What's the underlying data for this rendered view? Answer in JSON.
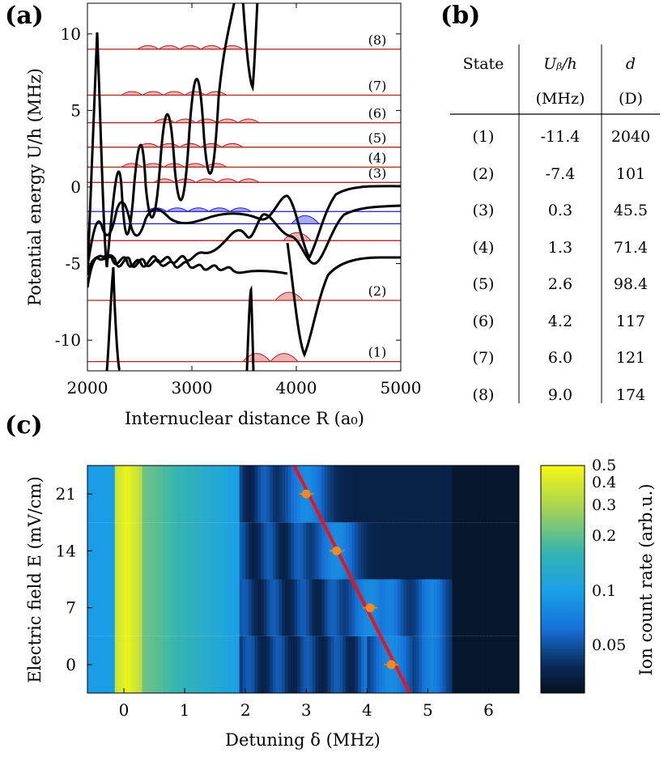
{
  "panels": {
    "a": "(a)",
    "b": "(b)",
    "c": "(c)"
  },
  "chart_data": [
    {
      "type": "line",
      "panel": "a",
      "xlabel": "Internuclear distance R (a₀)",
      "ylabel": "Potential energy U/h (MHz)",
      "xlim": [
        2000,
        5000
      ],
      "ylim": [
        -12,
        12
      ],
      "xticks": [
        2000,
        3000,
        4000,
        5000
      ],
      "yticks": [
        10,
        5,
        0,
        -5,
        -10
      ],
      "bound_states": [
        {
          "label": "(1)",
          "energy": -11.4,
          "color": "#b22222"
        },
        {
          "label": "(2)",
          "energy": -7.4,
          "color": "#b22222"
        },
        {
          "label": "",
          "energy": -3.5,
          "color": "#b22222"
        },
        {
          "label": "",
          "energy": -2.4,
          "color": "#1f1fcc"
        },
        {
          "label": "",
          "energy": -1.6,
          "color": "#1f1fcc"
        },
        {
          "label": "(3)",
          "energy": 0.3,
          "color": "#b22222"
        },
        {
          "label": "(4)",
          "energy": 1.3,
          "color": "#b22222"
        },
        {
          "label": "(5)",
          "energy": 2.6,
          "color": "#b22222"
        },
        {
          "label": "(6)",
          "energy": 4.2,
          "color": "#b22222"
        },
        {
          "label": "(7)",
          "energy": 6.0,
          "color": "#b22222"
        },
        {
          "label": "(8)",
          "energy": 9.0,
          "color": "#b22222"
        }
      ]
    },
    {
      "type": "heatmap",
      "panel": "c",
      "xlabel": "Detuning δ (MHz)",
      "ylabel": "Electric field E (mV/cm)",
      "colorbar_label": "Ion count rate (arb.u.)",
      "xlim": [
        -0.6,
        6.5
      ],
      "ylim": [
        -3.5,
        24.5
      ],
      "xticks": [
        0,
        1,
        2,
        3,
        4,
        5,
        6
      ],
      "yticks": [
        0,
        7,
        14,
        21
      ],
      "colorbar_ticks": [
        "0.5",
        "0.4",
        "0.3",
        "0.2",
        "0.1",
        "0.05"
      ],
      "fields": [
        0,
        7,
        14,
        21
      ],
      "resonance_points": [
        {
          "field": 21,
          "detuning": 3.0
        },
        {
          "field": 14,
          "detuning": 3.5
        },
        {
          "field": 7,
          "detuning": 4.05
        },
        {
          "field": 0,
          "detuning": 4.4
        }
      ],
      "fit_line": {
        "detuning_at_minus3.5": 4.7,
        "detuning_at_24.5": 2.8,
        "color": "#e8141c"
      }
    }
  ],
  "table": {
    "headers": {
      "state": "State",
      "ub": "Uᵦ/h",
      "ub_unit": "(MHz)",
      "d": "d",
      "d_unit": "(D)"
    },
    "rows": [
      {
        "state": "(1)",
        "ub": "-11.4",
        "d": "2040"
      },
      {
        "state": "(2)",
        "ub": "-7.4",
        "d": "101"
      },
      {
        "state": "(3)",
        "ub": "0.3",
        "d": "45.5"
      },
      {
        "state": "(4)",
        "ub": "1.3",
        "d": "71.4"
      },
      {
        "state": "(5)",
        "ub": "2.6",
        "d": "98.4"
      },
      {
        "state": "(6)",
        "ub": "4.2",
        "d": "117"
      },
      {
        "state": "(7)",
        "ub": "6.0",
        "d": "121"
      },
      {
        "state": "(8)",
        "ub": "9.0",
        "d": "174"
      }
    ]
  }
}
